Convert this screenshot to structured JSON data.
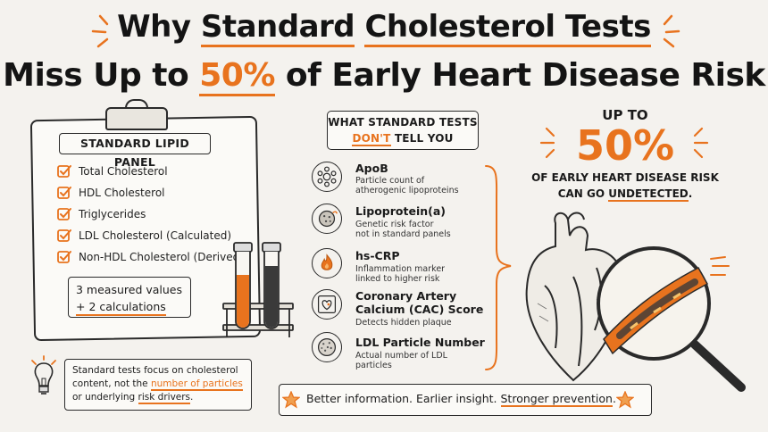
{
  "title": {
    "line1_pre": "Why ",
    "line1_u1": "Standard",
    "line1_mid": " ",
    "line1_u2": "Cholesterol Tests",
    "line2_pre": "Miss Up to ",
    "line2_highlight": "50%",
    "line2_post": " of Early Heart Disease Risk"
  },
  "lipid_panel": {
    "heading": "STANDARD LIPID PANEL",
    "items": [
      "Total Cholesterol",
      "HDL Cholesterol",
      "Triglycerides",
      "LDL Cholesterol (Calculated)",
      "Non-HDL Cholesterol (Derived)"
    ],
    "measured_line1": "3 measured values",
    "measured_line2": "+ 2 calculations"
  },
  "tests": {
    "header_line1": "WHAT STANDARD TESTS",
    "header_dont": "DON'T",
    "header_tell": " TELL YOU",
    "items": [
      {
        "title": "ApoB",
        "desc1": "Particle count of",
        "desc2": "atherogenic lipoproteins",
        "icon": "particles-icon"
      },
      {
        "title": "Lipoprotein(a)",
        "desc1": "Genetic risk factor",
        "desc2": "not in standard panels",
        "icon": "lipoprotein-icon"
      },
      {
        "title": "hs-CRP",
        "desc1": "Inflammation marker",
        "desc2": "linked to higher risk",
        "icon": "flame-icon"
      },
      {
        "title": "Coronary Artery",
        "title2": "Calcium (CAC) Score",
        "desc1": "Detects hidden plaque",
        "desc2": "",
        "icon": "heart-scan-icon"
      },
      {
        "title": "LDL Particle Number",
        "desc1": "Actual number of LDL",
        "desc2": "particles",
        "icon": "ldl-particle-icon"
      }
    ]
  },
  "risk": {
    "up_to": "UP TO",
    "percent": "50%",
    "line1": "OF EARLY HEART DISEASE RISK",
    "line2_pre": "CAN GO ",
    "line2_emph": "UNDETECTED",
    "line2_post": "."
  },
  "note": {
    "pre": "Standard tests focus on cholesterol content, not the ",
    "emph1": "number of particles",
    "mid": " or underlying ",
    "emph2": "risk drivers",
    "post": "."
  },
  "footer": {
    "part1": "Better information. Earlier insight. ",
    "emph": "Stronger prevention",
    "post": "."
  },
  "colors": {
    "accent": "#e8731e",
    "ink": "#1c1c1c",
    "paper": "#f4f2ee"
  }
}
